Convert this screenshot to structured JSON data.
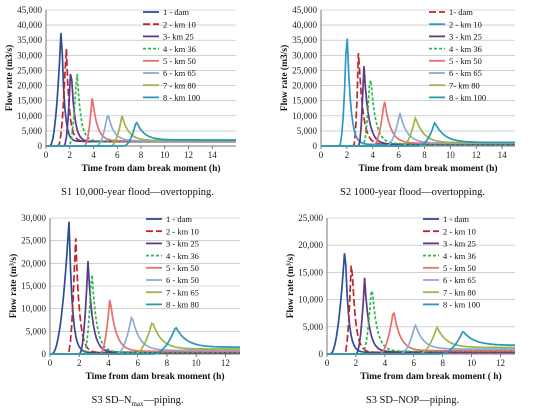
{
  "chart_data": [
    {
      "type": "line",
      "caption": "S1 10,000-year flood—overtopping.",
      "xlabel": "Time from dam break moment (h)",
      "ylabel": "Flow rate (m3/s)",
      "xlim": [
        0,
        16
      ],
      "ylim": [
        0,
        45000
      ],
      "xticks": [
        "0",
        "2",
        "4",
        "6",
        "8",
        "10",
        "12",
        "14"
      ],
      "yticks": [
        "0",
        "5,000",
        "10,000",
        "15,000",
        "20,000",
        "25,000",
        "30,000",
        "35,000",
        "40,000",
        "45,000"
      ],
      "grid": "horizontal",
      "legend": "top-right",
      "series": [
        {
          "name": "1 - dam",
          "color": "#2e4d99",
          "dash": "solid",
          "start": 0.3,
          "peak_x": 1.3,
          "peak_y": 41200,
          "tail_y": 1500
        },
        {
          "name": "2 - km 10",
          "color": "#c0262c",
          "dash": "long",
          "start": 1.0,
          "peak_x": 1.7,
          "peak_y": 34000,
          "tail_y": 1500
        },
        {
          "name": "3- km 25",
          "color": "#5b3a8a",
          "dash": "solid",
          "start": 1.5,
          "peak_x": 2.1,
          "peak_y": 28000,
          "tail_y": 1500
        },
        {
          "name": "4 - km 36",
          "color": "#2db84a",
          "dash": "short",
          "start": 1.9,
          "peak_x": 2.6,
          "peak_y": 26000,
          "tail_y": 1600
        },
        {
          "name": "5 - km 50",
          "color": "#e86f6b",
          "dash": "solid",
          "start": 3.2,
          "peak_x": 3.9,
          "peak_y": 16500,
          "tail_y": 1700
        },
        {
          "name": "6 - km 65",
          "color": "#8fa9d8",
          "dash": "solid",
          "start": 4.2,
          "peak_x": 5.2,
          "peak_y": 11000,
          "tail_y": 1700
        },
        {
          "name": "7 - km 80",
          "color": "#9ab64a",
          "dash": "solid",
          "start": 5.4,
          "peak_x": 6.4,
          "peak_y": 10000,
          "tail_y": 1800
        },
        {
          "name": "8 - km 100",
          "color": "#2a96b8",
          "dash": "solid",
          "start": 6.5,
          "peak_x": 7.6,
          "peak_y": 8200,
          "tail_y": 2000
        }
      ]
    },
    {
      "type": "line",
      "caption": "S2 1000-year flood—overtopping.",
      "xlabel": "Time from dam break moment (h)",
      "ylabel": "Flow rate (m3/s)",
      "xlim": [
        0,
        15
      ],
      "ylim": [
        0,
        45000
      ],
      "xticks": [
        "0",
        "2",
        "4",
        "6",
        "8",
        "10",
        "12",
        "14"
      ],
      "yticks": [
        "0",
        "5,000",
        "10,000",
        "15,000",
        "20,000",
        "25,000",
        "30,000",
        "35,000",
        "40,000",
        "45,000"
      ],
      "grid": "horizontal",
      "legend": "top-right",
      "series": [
        {
          "name": "1- dam",
          "color": "#c0262c",
          "dash": "long",
          "start": 2.5,
          "peak_x": 2.9,
          "peak_y": 32000,
          "tail_y": 500
        },
        {
          "name": "2 - km 10",
          "color": "#2e96c8",
          "dash": "solid",
          "start": 1.4,
          "peak_x": 2.0,
          "peak_y": 40500,
          "tail_y": 500
        },
        {
          "name": "3 - km 25",
          "color": "#5b3a8a",
          "dash": "solid",
          "start": 2.9,
          "peak_x": 3.3,
          "peak_y": 28000,
          "tail_y": 600
        },
        {
          "name": "4 - km 36",
          "color": "#2db84a",
          "dash": "short",
          "start": 3.2,
          "peak_x": 3.8,
          "peak_y": 25000,
          "tail_y": 700
        },
        {
          "name": "5 - km 50",
          "color": "#e86f6b",
          "dash": "solid",
          "start": 4.0,
          "peak_x": 4.9,
          "peak_y": 15500,
          "tail_y": 900
        },
        {
          "name": "6 - km 65",
          "color": "#8fa9d8",
          "dash": "solid",
          "start": 5.0,
          "peak_x": 6.1,
          "peak_y": 11000,
          "tail_y": 1000
        },
        {
          "name": "7- km 80",
          "color": "#9ab64a",
          "dash": "solid",
          "start": 6.2,
          "peak_x": 7.3,
          "peak_y": 9500,
          "tail_y": 1100
        },
        {
          "name": "8 - km 100",
          "color": "#2a96b8",
          "dash": "solid",
          "start": 7.5,
          "peak_x": 8.8,
          "peak_y": 7800,
          "tail_y": 1200
        }
      ]
    },
    {
      "type": "line",
      "caption": "S3 SD–N",
      "caption_sub": "max",
      "caption_tail": "—piping.",
      "xlabel": "Time from dam break moment (h)",
      "ylabel": "Flow rate (m³/s)",
      "ylabel_sup": "3",
      "xlim": [
        0,
        13
      ],
      "ylim": [
        0,
        30000
      ],
      "xticks": [
        "0",
        "2",
        "4",
        "6",
        "8",
        "10",
        "12"
      ],
      "yticks": [
        "0",
        "5,000",
        "10,000",
        "15,000",
        "20,000",
        "25,000",
        "30,000"
      ],
      "grid": "horizontal",
      "legend": "top-right",
      "series": [
        {
          "name": "1 - dam",
          "color": "#2e4d99",
          "dash": "solid",
          "start": 0.1,
          "peak_x": 1.3,
          "peak_y": 29200,
          "tail_y": 300
        },
        {
          "name": "2 - km 10",
          "color": "#c0262c",
          "dash": "long",
          "start": 1.2,
          "peak_x": 1.75,
          "peak_y": 27000,
          "tail_y": 300
        },
        {
          "name": "3 - km 25",
          "color": "#5b3a8a",
          "dash": "solid",
          "start": 2.0,
          "peak_x": 2.6,
          "peak_y": 20500,
          "tail_y": 400
        },
        {
          "name": "4 - km 36",
          "color": "#2db84a",
          "dash": "short",
          "start": 2.3,
          "peak_x": 2.85,
          "peak_y": 19000,
          "tail_y": 400
        },
        {
          "name": "5 - km 50",
          "color": "#e86f6b",
          "dash": "solid",
          "start": 3.4,
          "peak_x": 4.1,
          "peak_y": 12500,
          "tail_y": 600
        },
        {
          "name": "6 - km 50",
          "color": "#8fa9d8",
          "dash": "solid",
          "start": 4.5,
          "peak_x": 5.6,
          "peak_y": 8500,
          "tail_y": 800
        },
        {
          "name": "7 - km 65",
          "color": "#9ab64a",
          "dash": "solid",
          "start": 5.7,
          "peak_x": 7.0,
          "peak_y": 7200,
          "tail_y": 1100
        },
        {
          "name": "8 -  km 80",
          "color": "#2a96b8",
          "dash": "solid",
          "start": 7.0,
          "peak_x": 8.6,
          "peak_y": 6000,
          "tail_y": 1500
        }
      ]
    },
    {
      "type": "line",
      "caption": "S3 SD–NOP—piping.",
      "xlabel": "Time from dam break moment ( h)",
      "ylabel": "Flow rate (m³/s)",
      "xlim": [
        0,
        13
      ],
      "ylim": [
        0,
        25000
      ],
      "xticks": [
        "0",
        "2",
        "4",
        "6",
        "8",
        "10",
        "12"
      ],
      "yticks": [
        "0",
        "5,000",
        "10,000",
        "15,000",
        "20,000",
        "25,000"
      ],
      "grid": "horizontal",
      "legend": "top-right",
      "series": [
        {
          "name": "1 - dam",
          "color": "#2e4d99",
          "dash": "solid",
          "start": 0.2,
          "peak_x": 1.25,
          "peak_y": 20300,
          "tail_y": 300
        },
        {
          "name": "2 - km 10",
          "color": "#c0262c",
          "dash": "long",
          "start": 1.2,
          "peak_x": 1.7,
          "peak_y": 18500,
          "tail_y": 300
        },
        {
          "name": "3 - km 25",
          "color": "#5b3a8a",
          "dash": "solid",
          "start": 2.0,
          "peak_x": 2.6,
          "peak_y": 14000,
          "tail_y": 400
        },
        {
          "name": "4 - km 36",
          "color": "#2db84a",
          "dash": "short",
          "start": 2.4,
          "peak_x": 3.1,
          "peak_y": 13000,
          "tail_y": 500
        },
        {
          "name": "5 - km 50",
          "color": "#e86f6b",
          "dash": "solid",
          "start": 3.6,
          "peak_x": 4.6,
          "peak_y": 8200,
          "tail_y": 600
        },
        {
          "name": "6 - km 65",
          "color": "#8fa9d8",
          "dash": "solid",
          "start": 5.0,
          "peak_x": 6.1,
          "peak_y": 5500,
          "tail_y": 900
        },
        {
          "name": "7 - km 80",
          "color": "#9ab64a",
          "dash": "solid",
          "start": 6.3,
          "peak_x": 7.6,
          "peak_y": 5000,
          "tail_y": 1200
        },
        {
          "name": "8 - km 100",
          "color": "#2a96b8",
          "dash": "solid",
          "start": 7.8,
          "peak_x": 9.4,
          "peak_y": 4200,
          "tail_y": 1600
        }
      ]
    }
  ]
}
